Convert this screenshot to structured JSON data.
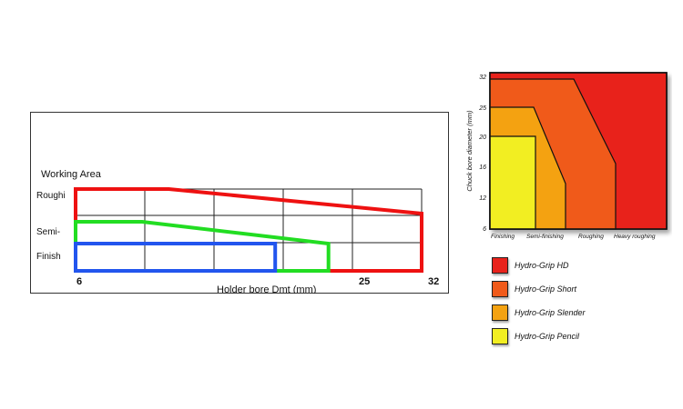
{
  "chart_data": [
    {
      "type": "area",
      "title": "Working Area",
      "xlabel": "Holder bore Dmt (mm)",
      "ylabel": "",
      "x_ticks": [
        "6",
        "25",
        "32"
      ],
      "y_categories": [
        "Roughi",
        "Semi-",
        "Finish"
      ],
      "x_range": [
        6,
        32
      ],
      "grid": true,
      "series": [
        {
          "color": "#ee1111",
          "points": [
            [
              6,
              3.0
            ],
            [
              13,
              3.0
            ],
            [
              32,
              2.1
            ]
          ]
        },
        {
          "color": "#22dd22",
          "points": [
            [
              6,
              1.8
            ],
            [
              11,
              1.8
            ],
            [
              25,
              1.0
            ]
          ]
        },
        {
          "color": "#2255ee",
          "points": [
            [
              6,
              1.0
            ],
            [
              21,
              1.0
            ]
          ]
        }
      ]
    },
    {
      "type": "area",
      "title": "",
      "xlabel": "",
      "ylabel": "Chuck bore diameter (mm)",
      "y_ticks": [
        "6",
        "12",
        "16",
        "20",
        "25",
        "32"
      ],
      "x_categories": [
        "Finishing",
        "Semi-finishing",
        "Roughing",
        "Heavy roughing"
      ],
      "series": [
        {
          "name": "Hydro-Grip HD",
          "color": "#e8221b",
          "extent": "Finishing to Heavy roughing, up to 32"
        },
        {
          "name": "Hydro-Grip Short",
          "color": "#f05a1a",
          "extent": "Finishing to Roughing, up to 32"
        },
        {
          "name": "Hydro-Grip Slender",
          "color": "#f4a211",
          "extent": "Finishing to Semi-finishing, up to 25"
        },
        {
          "name": "Hydro-Grip Pencil",
          "color": "#f2ee22",
          "extent": "Finishing, up to 20"
        }
      ]
    }
  ]
}
